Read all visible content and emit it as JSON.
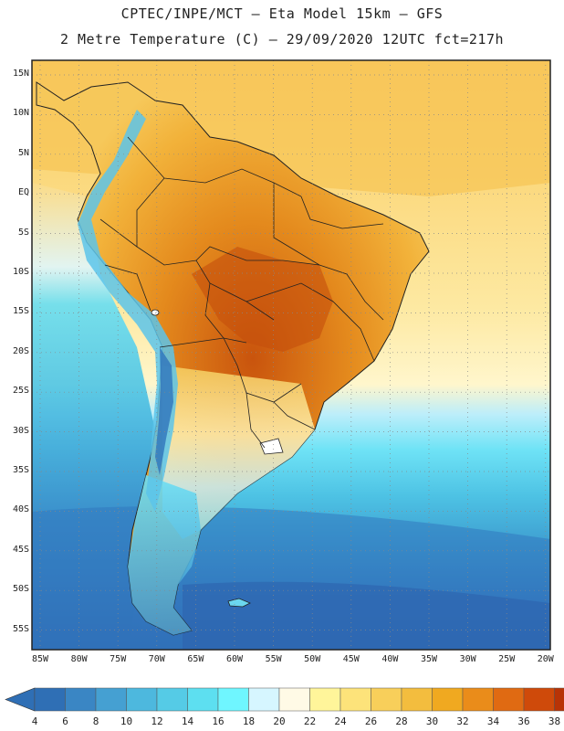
{
  "header": {
    "line1": "CPTEC/INPE/MCT –  Eta Model 15km – GFS",
    "line2": "2 Metre Temperature (C) – 29/09/2020 12UTC fct=217h"
  },
  "axes": {
    "lat_labels": [
      "15N",
      "10N",
      "5N",
      "EQ",
      "5S",
      "10S",
      "15S",
      "20S",
      "25S",
      "30S",
      "35S",
      "40S",
      "45S",
      "50S",
      "55S"
    ],
    "lon_labels": [
      "85W",
      "80W",
      "75W",
      "70W",
      "65W",
      "60W",
      "55W",
      "50W",
      "45W",
      "40W",
      "35W",
      "30W",
      "25W",
      "20W"
    ]
  },
  "colorbar": {
    "labels": [
      "4",
      "6",
      "8",
      "10",
      "12",
      "14",
      "16",
      "18",
      "20",
      "22",
      "24",
      "26",
      "28",
      "30",
      "32",
      "34",
      "36",
      "38"
    ],
    "colors": [
      "#2f6fb5",
      "#3a86c4",
      "#45a0d2",
      "#4db8de",
      "#55cbe6",
      "#5ddff0",
      "#6ff6ff",
      "#d6f6ff",
      "#fffae6",
      "#fff59a",
      "#fde37a",
      "#f8cf5a",
      "#f3bd3e",
      "#f0a920",
      "#ea8c1a",
      "#e06a12",
      "#cf4a0a",
      "#b83306"
    ]
  },
  "colors": {
    "ocean_cold": "#3a79c0",
    "ocean_mid": "#4fc3e6",
    "ocean_warm": "#fff3b0",
    "land_hot": "#e8901f",
    "andes": "#6fd6f2"
  }
}
